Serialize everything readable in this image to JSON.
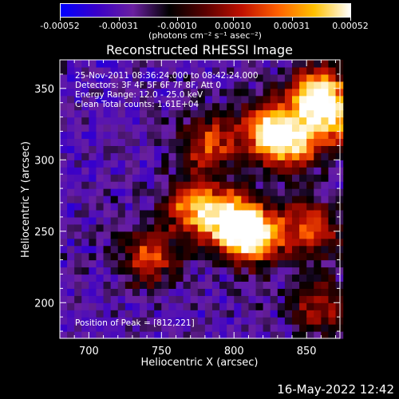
{
  "colorbar": {
    "tick_labels": [
      "-0.00052",
      "-0.00031",
      "-0.00010",
      "0.00010",
      "0.00031",
      "0.00052"
    ],
    "tick_values": [
      -0.00052,
      -0.00031,
      -0.0001,
      0.0001,
      0.00031,
      0.00052
    ],
    "units": "(photons cm⁻² s⁻¹ asec⁻²)",
    "colors": [
      "#0000ff",
      "#3a00c8",
      "#6a20a0",
      "#000000",
      "#5a0000",
      "#c01000",
      "#ff6000",
      "#ffc000",
      "#ffffff"
    ]
  },
  "chart_data": {
    "type": "heatmap",
    "title": "Reconstructed RHESSI Image",
    "xlabel": "Heliocentric X (arcsec)",
    "ylabel": "Heliocentric Y (arcsec)",
    "xlim": [
      680,
      873
    ],
    "ylim": [
      175,
      370
    ],
    "x_ticks": [
      700,
      750,
      800,
      850
    ],
    "y_ticks": [
      200,
      250,
      300,
      350
    ],
    "x_tick_labels": [
      "700",
      "750",
      "800",
      "850"
    ],
    "y_tick_labels": [
      "200",
      "250",
      "300",
      "350"
    ],
    "annotations": [
      "25-Nov-2011 08:36:24.000 to 08:42:24.000",
      "Detectors: 3F 4F 5F 6F 7F 8F, Att 0",
      "Energy Range: 12.0 - 25.0 keV",
      "Clean    Total counts: 1.61E+04"
    ],
    "peak_label": "Position of Peak = [812,221]",
    "peak_position": [
      812,
      221
    ],
    "bright_regions": [
      {
        "x": 810,
        "y": 245,
        "intensity": 1.0
      },
      {
        "x": 795,
        "y": 255,
        "intensity": 0.85
      },
      {
        "x": 770,
        "y": 265,
        "intensity": 0.75
      },
      {
        "x": 740,
        "y": 230,
        "intensity": 0.6
      },
      {
        "x": 835,
        "y": 310,
        "intensity": 0.8
      },
      {
        "x": 820,
        "y": 320,
        "intensity": 0.7
      },
      {
        "x": 855,
        "y": 345,
        "intensity": 0.9
      },
      {
        "x": 865,
        "y": 325,
        "intensity": 0.75
      },
      {
        "x": 780,
        "y": 310,
        "intensity": 0.6
      },
      {
        "x": 850,
        "y": 250,
        "intensity": 0.65
      },
      {
        "x": 855,
        "y": 195,
        "intensity": 0.5
      }
    ]
  },
  "footer": "16-May-2022 12:42"
}
